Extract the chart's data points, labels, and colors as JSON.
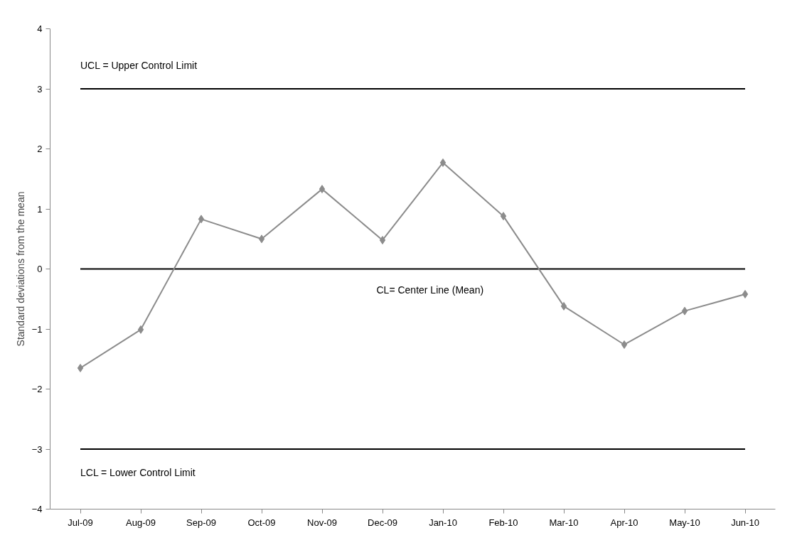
{
  "chart_data": {
    "type": "line",
    "ylabel": "Standard deviations from the mean",
    "categories": [
      "Jul-09",
      "Aug-09",
      "Sep-09",
      "Oct-09",
      "Nov-09",
      "Dec-09",
      "Jan-10",
      "Feb-10",
      "Mar-10",
      "Apr-10",
      "May-10",
      "Jun-10"
    ],
    "series": [
      {
        "color": "#8c8c8c",
        "values": [
          -1.65,
          -1.01,
          0.83,
          0.5,
          1.33,
          0.48,
          1.77,
          0.88,
          -0.62,
          -1.26,
          -0.7,
          -0.42
        ]
      }
    ],
    "ylim": [
      -4,
      4
    ],
    "yticks": [
      -4,
      -3,
      -2,
      -1,
      0,
      1,
      2,
      3,
      4
    ],
    "ref_lines": [
      {
        "axis": "y",
        "value": 3,
        "label": "UCL = Upper Control Limit",
        "color": "#000000"
      },
      {
        "axis": "y",
        "value": 0,
        "label": "CL= Center Line (Mean)",
        "color": "#000000"
      },
      {
        "axis": "y",
        "value": -3,
        "label": "LCL = Lower Control Limit",
        "color": "#000000"
      }
    ],
    "grid": false,
    "marker": "diamond",
    "line_style": "solid"
  }
}
